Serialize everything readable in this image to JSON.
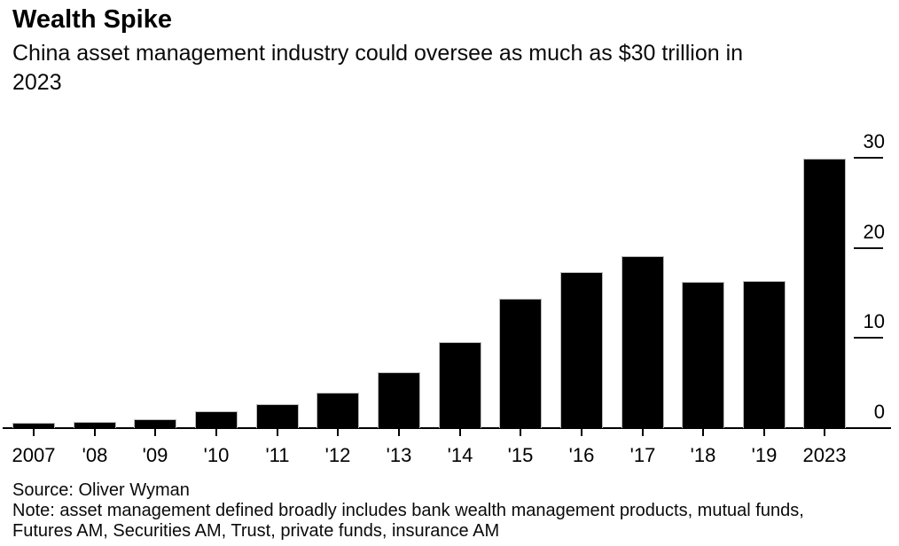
{
  "header": {
    "title": "Wealth Spike",
    "subtitle": "China asset management industry could oversee as much as $30 trillion in 2023",
    "subtitle_lines": [
      "China asset management industry could oversee as much as $30 trillion in",
      "2023"
    ]
  },
  "chart_data": {
    "type": "bar",
    "title": "Wealth Spike",
    "subtitle": "China asset management industry could oversee as much as $30 trillion in 2023",
    "categories": [
      "2007",
      "'08",
      "'09",
      "'10",
      "'11",
      "'12",
      "'13",
      "'14",
      "'15",
      "'16",
      "'17",
      "'18",
      "'19",
      "2023"
    ],
    "values": [
      0.6,
      0.7,
      1.0,
      1.9,
      2.7,
      3.9,
      6.2,
      9.5,
      14.4,
      17.3,
      19.1,
      16.2,
      16.3,
      29.9
    ],
    "unit": "USD trillions",
    "xlabel": "",
    "ylabel": "",
    "ylim": [
      0,
      30
    ],
    "yticks": [
      0,
      10,
      20,
      30
    ],
    "ytick_side": "right",
    "grid": false,
    "legend": "none",
    "bar_color": "#000000",
    "bar_edge_color": "#b9b9b9",
    "background_color": "#ffffff",
    "text_color": "#000000"
  },
  "footer": {
    "source": "Source: Oliver Wyman",
    "note": "Note: asset management defined broadly includes bank wealth management products, mutual funds, Futures AM, Securities AM, Trust, private funds, insurance AM",
    "note_lines": [
      "Note: asset management defined broadly includes bank wealth management products, mutual funds,",
      "Futures AM, Securities AM, Trust, private funds, insurance AM"
    ]
  }
}
